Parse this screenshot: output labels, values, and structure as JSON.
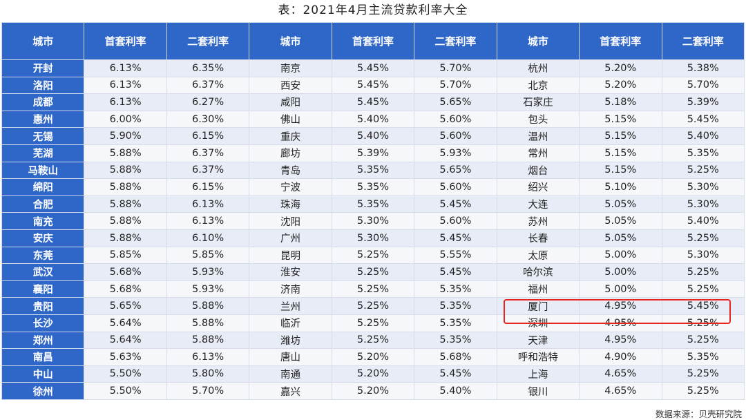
{
  "title": "表：2021年4月主流贷款利率大全",
  "source": "数据来源：贝壳研究院",
  "colors": {
    "header": "#2f67c9",
    "highlight": "#e8241f"
  },
  "chart_data": {
    "type": "table",
    "columns": [
      "城市",
      "首套利率",
      "二套利率",
      "城市",
      "首套利率",
      "二套利率",
      "城市",
      "首套利率",
      "二套利率"
    ],
    "rows": [
      [
        "开封",
        "6.13%",
        "6.35%",
        "南京",
        "5.45%",
        "5.70%",
        "杭州",
        "5.20%",
        "5.38%"
      ],
      [
        "洛阳",
        "6.13%",
        "6.37%",
        "西安",
        "5.45%",
        "5.70%",
        "北京",
        "5.20%",
        "5.70%"
      ],
      [
        "成都",
        "6.13%",
        "6.27%",
        "咸阳",
        "5.45%",
        "5.65%",
        "石家庄",
        "5.18%",
        "5.39%"
      ],
      [
        "惠州",
        "6.00%",
        "6.30%",
        "佛山",
        "5.40%",
        "5.60%",
        "包头",
        "5.15%",
        "5.45%"
      ],
      [
        "无锡",
        "5.90%",
        "6.15%",
        "重庆",
        "5.40%",
        "5.60%",
        "温州",
        "5.15%",
        "5.40%"
      ],
      [
        "芜湖",
        "5.88%",
        "6.37%",
        "廊坊",
        "5.39%",
        "5.93%",
        "常州",
        "5.15%",
        "5.35%"
      ],
      [
        "马鞍山",
        "5.88%",
        "6.37%",
        "青岛",
        "5.35%",
        "5.65%",
        "烟台",
        "5.15%",
        "5.25%"
      ],
      [
        "绵阳",
        "5.88%",
        "6.15%",
        "宁波",
        "5.35%",
        "5.60%",
        "绍兴",
        "5.10%",
        "5.30%"
      ],
      [
        "合肥",
        "5.88%",
        "6.13%",
        "珠海",
        "5.35%",
        "5.45%",
        "大连",
        "5.05%",
        "5.30%"
      ],
      [
        "南充",
        "5.88%",
        "6.13%",
        "沈阳",
        "5.30%",
        "5.60%",
        "苏州",
        "5.05%",
        "5.40%"
      ],
      [
        "安庆",
        "5.88%",
        "6.10%",
        "广州",
        "5.30%",
        "5.45%",
        "长春",
        "5.05%",
        "5.25%"
      ],
      [
        "东莞",
        "5.85%",
        "5.85%",
        "昆明",
        "5.25%",
        "5.55%",
        "太原",
        "5.00%",
        "5.30%"
      ],
      [
        "武汉",
        "5.68%",
        "5.93%",
        "淮安",
        "5.25%",
        "5.45%",
        "哈尔滨",
        "5.00%",
        "5.25%"
      ],
      [
        "襄阳",
        "5.68%",
        "5.93%",
        "济南",
        "5.25%",
        "5.35%",
        "福州",
        "5.00%",
        "5.25%"
      ],
      [
        "贵阳",
        "5.65%",
        "5.88%",
        "兰州",
        "5.25%",
        "5.35%",
        "厦门",
        "4.95%",
        "5.45%"
      ],
      [
        "长沙",
        "5.64%",
        "5.88%",
        "临沂",
        "5.25%",
        "5.35%",
        "深圳",
        "4.95%",
        "5.25%"
      ],
      [
        "郑州",
        "5.64%",
        "5.88%",
        "潍坊",
        "5.25%",
        "5.35%",
        "天津",
        "4.95%",
        "5.25%"
      ],
      [
        "南昌",
        "5.63%",
        "6.13%",
        "唐山",
        "5.20%",
        "5.68%",
        "呼和浩特",
        "4.90%",
        "5.35%"
      ],
      [
        "中山",
        "5.50%",
        "5.80%",
        "南通",
        "5.20%",
        "5.45%",
        "上海",
        "4.65%",
        "5.25%"
      ],
      [
        "徐州",
        "5.50%",
        "5.70%",
        "嘉兴",
        "5.20%",
        "5.40%",
        "银川",
        "4.65%",
        "5.25%"
      ]
    ],
    "highlighted_row": 14,
    "highlighted_group": 3
  }
}
